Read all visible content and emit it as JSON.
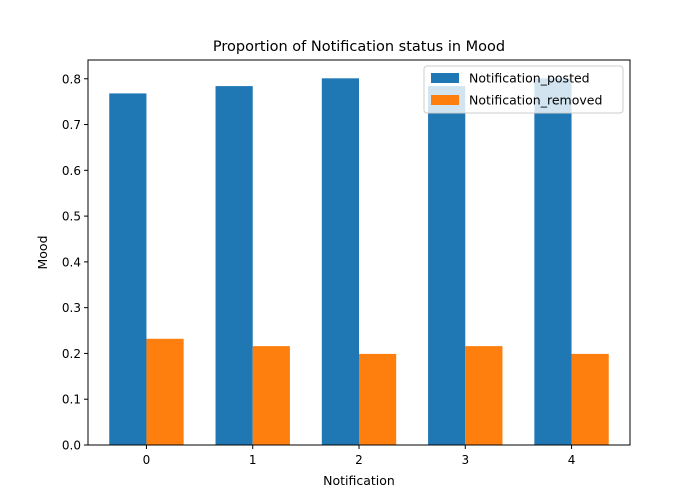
{
  "chart_data": {
    "type": "bar",
    "title": "Proportion of Notification status in Mood",
    "xlabel": "Notification",
    "ylabel": "Mood",
    "categories": [
      "0",
      "1",
      "2",
      "3",
      "4"
    ],
    "series": [
      {
        "name": "Notification_posted",
        "color": "#1f77b4",
        "values": [
          0.768,
          0.784,
          0.801,
          0.784,
          0.801
        ]
      },
      {
        "name": "Notification_removed",
        "color": "#ff7f0e",
        "values": [
          0.232,
          0.216,
          0.199,
          0.216,
          0.199
        ]
      }
    ],
    "ylim": [
      0,
      0.841
    ],
    "yticks": [
      0.0,
      0.1,
      0.2,
      0.3,
      0.4,
      0.5,
      0.6,
      0.7,
      0.8
    ],
    "ytick_labels": [
      "0.0",
      "0.1",
      "0.2",
      "0.3",
      "0.4",
      "0.5",
      "0.6",
      "0.7",
      "0.8"
    ],
    "grid": false,
    "legend_position": "top-right"
  }
}
